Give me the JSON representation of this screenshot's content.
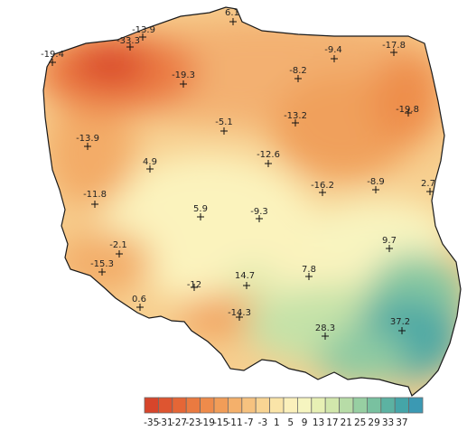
{
  "map": {
    "colors": {
      "outline": "#1a1a1a",
      "background": "#ffffff"
    },
    "stations": [
      {
        "label": "6.1"
      },
      {
        "label": "-13.9"
      },
      {
        "label": "-33.3"
      },
      {
        "label": "-19.4"
      },
      {
        "label": "-9.4"
      },
      {
        "label": "-17.8"
      },
      {
        "label": "-19.3"
      },
      {
        "label": "-8.2"
      },
      {
        "label": "-19.8"
      },
      {
        "label": "-5.1"
      },
      {
        "label": "-13.2"
      },
      {
        "label": "-13.9"
      },
      {
        "label": "-12.6"
      },
      {
        "label": "4.9"
      },
      {
        "label": "-16.2"
      },
      {
        "label": "-8.9"
      },
      {
        "label": "2.7"
      },
      {
        "label": "-11.8"
      },
      {
        "label": "5.9"
      },
      {
        "label": "-9.3"
      },
      {
        "label": "-2.1"
      },
      {
        "label": "9.7"
      },
      {
        "label": "-15.3"
      },
      {
        "label": "14.7"
      },
      {
        "label": "7.8"
      },
      {
        "label": "-12"
      },
      {
        "label": "0.6"
      },
      {
        "label": "-14.3"
      },
      {
        "label": "28.3"
      },
      {
        "label": "37.2"
      }
    ]
  },
  "legend": {
    "ticks": [
      "-35",
      "-31",
      "-27",
      "-23",
      "-19",
      "-15",
      "-11",
      "-7",
      "-3",
      "1",
      "5",
      "9",
      "13",
      "17",
      "21",
      "25",
      "29",
      "33",
      "37"
    ],
    "colors": [
      "#d7452b",
      "#de5530",
      "#e56636",
      "#ea7a40",
      "#ee8b4b",
      "#f19d58",
      "#f4b06b",
      "#f6c27f",
      "#f8d493",
      "#fae4a8",
      "#fbf0bb",
      "#f6f5c0",
      "#e7f0b4",
      "#d2e7ac",
      "#b7dca7",
      "#97cfa2",
      "#79c1a0",
      "#5cb2a2",
      "#45a5a8",
      "#3b99b3"
    ]
  }
}
